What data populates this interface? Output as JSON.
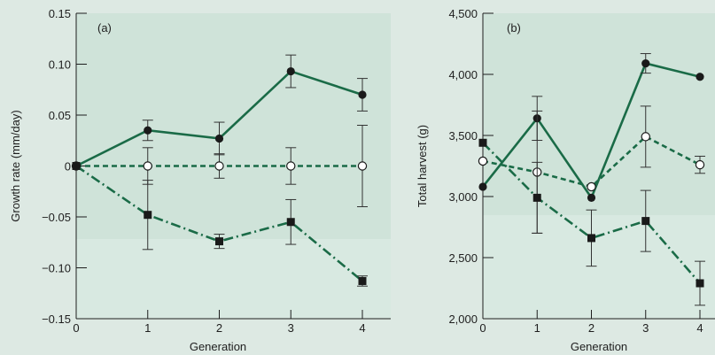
{
  "chart_data": [
    {
      "type": "line",
      "panel_label": "(a)",
      "xlabel": "Generation",
      "ylabel": "Growth rate (mm/day)",
      "x": [
        0,
        1,
        2,
        3,
        4
      ],
      "xticks": [
        "0",
        "1",
        "2",
        "3",
        "4"
      ],
      "xlim": [
        0,
        4.5
      ],
      "ylim": [
        -0.15,
        0.15
      ],
      "yticks": [
        -0.15,
        -0.1,
        -0.05,
        0,
        0.05,
        0.1,
        0.15
      ],
      "ytick_labels": [
        "−0.15",
        "−0.10",
        "−0.05",
        "0",
        "0.05",
        "0.10",
        "0.15"
      ],
      "series": [
        {
          "marker": "filled-circle",
          "line": "solid",
          "color": "#1a6b47",
          "values": [
            0,
            0.035,
            0.027,
            0.093,
            0.07
          ],
          "errors": [
            0,
            0.01,
            0.016,
            0.016,
            0.016
          ]
        },
        {
          "marker": "open-circle",
          "line": "dashed",
          "color": "#1a6b47",
          "values": [
            0,
            0,
            0,
            0,
            0
          ],
          "errors": [
            0,
            0.018,
            0.012,
            0.018,
            0.04
          ]
        },
        {
          "marker": "filled-square",
          "line": "dash-dot",
          "color": "#1a6b47",
          "values": [
            0,
            -0.048,
            -0.074,
            -0.055,
            -0.113
          ],
          "errors": [
            0,
            0.034,
            0.007,
            0.022,
            0.005
          ]
        }
      ]
    },
    {
      "type": "line",
      "panel_label": "(b)",
      "xlabel": "Generation",
      "ylabel": "Total harvest (g)",
      "x": [
        0,
        1,
        2,
        3,
        4
      ],
      "xticks": [
        "0",
        "1",
        "2",
        "3",
        "4"
      ],
      "xlim": [
        0,
        4.1
      ],
      "ylim": [
        2000,
        4500
      ],
      "yticks": [
        2000,
        2500,
        3000,
        3500,
        4000,
        4500
      ],
      "ytick_labels": [
        "2,000",
        "2,500",
        "3,000",
        "3,500",
        "4,000",
        "4,500"
      ],
      "series": [
        {
          "marker": "filled-circle",
          "line": "solid",
          "color": "#1a6b47",
          "values": [
            3080,
            3640,
            2990,
            4090,
            3980
          ],
          "errors": [
            0,
            180,
            0,
            80,
            0
          ]
        },
        {
          "marker": "open-circle",
          "line": "dashed",
          "color": "#1a6b47",
          "values": [
            3290,
            3200,
            3080,
            3490,
            3260
          ],
          "errors": [
            0,
            500,
            0,
            250,
            70
          ]
        },
        {
          "marker": "filled-square",
          "line": "dash-dot",
          "color": "#1a6b47",
          "values": [
            3440,
            2990,
            2660,
            2800,
            2290
          ],
          "errors": [
            0,
            290,
            230,
            250,
            180
          ]
        }
      ]
    }
  ]
}
